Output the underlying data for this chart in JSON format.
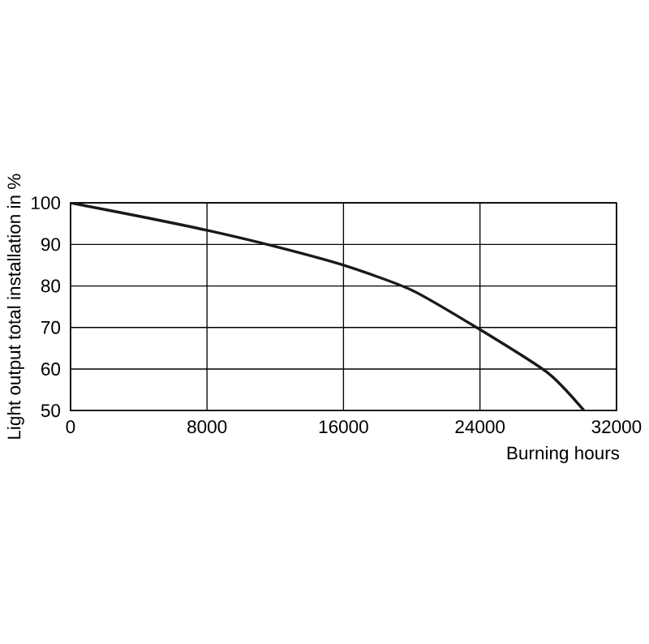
{
  "chart_data": {
    "type": "line",
    "xlabel": "Burning hours",
    "ylabel": "Light output total installation in %",
    "x": [
      0,
      4000,
      8000,
      12000,
      16000,
      20000,
      24000,
      28000,
      30100
    ],
    "series": [
      {
        "color": "#1a1a1a",
        "values": [
          100,
          96.8,
          93.4,
          89.5,
          85,
          79,
          69.5,
          59,
          50
        ]
      }
    ],
    "xlim": [
      0,
      32000
    ],
    "ylim": [
      50,
      100
    ],
    "xticks": [
      0,
      8000,
      16000,
      24000,
      32000
    ],
    "yticks": [
      50,
      60,
      70,
      80,
      90,
      100
    ],
    "grid": true,
    "marker": "none",
    "line_style": "solid"
  }
}
